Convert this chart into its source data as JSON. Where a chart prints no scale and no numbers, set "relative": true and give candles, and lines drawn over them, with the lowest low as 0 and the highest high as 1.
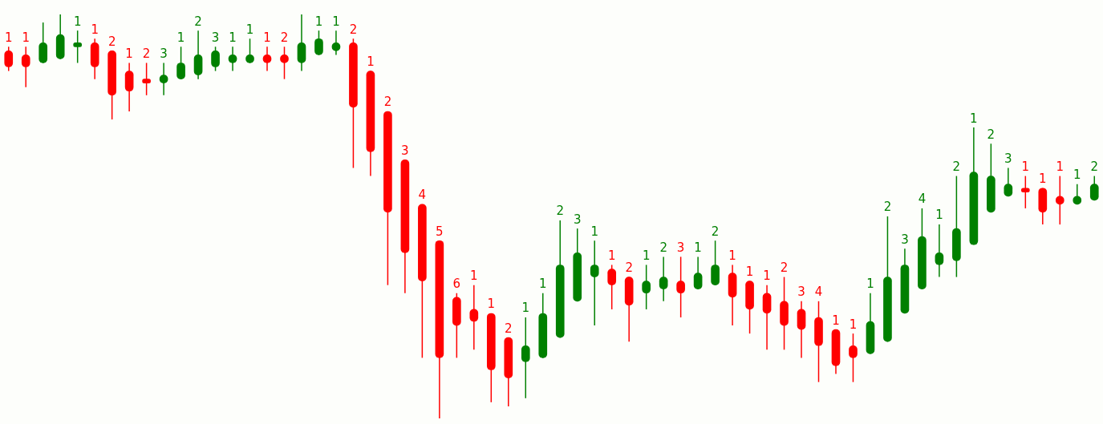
{
  "chart_data": {
    "type": "candlestick",
    "relative": true,
    "categories": [
      null,
      null,
      null,
      null,
      null,
      null,
      null,
      null,
      null,
      null,
      null,
      null,
      null,
      null,
      null,
      null,
      null,
      null,
      null,
      null,
      null,
      null,
      null,
      null,
      null,
      null,
      null,
      null,
      null,
      null,
      null,
      null,
      null,
      null,
      null,
      null,
      null,
      null,
      null,
      null,
      null,
      null,
      null,
      null,
      null,
      null,
      null,
      null,
      null,
      null,
      null,
      null,
      null,
      null,
      null,
      null,
      null,
      null,
      null,
      null,
      null,
      null,
      null,
      null
    ],
    "ohlc": [
      [
        0.91,
        0.92,
        0.86,
        0.87
      ],
      [
        0.9,
        0.92,
        0.82,
        0.87
      ],
      [
        0.88,
        0.98,
        0.88,
        0.93
      ],
      [
        0.89,
        1.0,
        0.89,
        0.95
      ],
      [
        0.92,
        0.96,
        0.88,
        0.93
      ],
      [
        0.93,
        0.94,
        0.84,
        0.87
      ],
      [
        0.91,
        0.91,
        0.74,
        0.8
      ],
      [
        0.86,
        0.88,
        0.76,
        0.81
      ],
      [
        0.84,
        0.88,
        0.8,
        0.83
      ],
      [
        0.83,
        0.88,
        0.8,
        0.85
      ],
      [
        0.84,
        0.92,
        0.84,
        0.88
      ],
      [
        0.85,
        0.96,
        0.84,
        0.9
      ],
      [
        0.87,
        0.92,
        0.86,
        0.91
      ],
      [
        0.88,
        0.92,
        0.86,
        0.9
      ],
      [
        0.88,
        0.94,
        0.88,
        0.9
      ],
      [
        0.9,
        0.92,
        0.86,
        0.88
      ],
      [
        0.9,
        0.92,
        0.84,
        0.88
      ],
      [
        0.88,
        1.0,
        0.86,
        0.93
      ],
      [
        0.9,
        0.96,
        0.9,
        0.94
      ],
      [
        0.91,
        0.96,
        0.9,
        0.93
      ],
      [
        0.93,
        0.94,
        0.62,
        0.77
      ],
      [
        0.86,
        0.86,
        0.6,
        0.66
      ],
      [
        0.76,
        0.76,
        0.33,
        0.51
      ],
      [
        0.64,
        0.64,
        0.31,
        0.41
      ],
      [
        0.53,
        0.53,
        0.15,
        0.34
      ],
      [
        0.44,
        0.44,
        0,
        0.15
      ],
      [
        0.3,
        0.31,
        0.15,
        0.23
      ],
      [
        0.27,
        0.33,
        0.17,
        0.24
      ],
      [
        0.26,
        0.26,
        0.04,
        0.12
      ],
      [
        0.2,
        0.2,
        0.03,
        0.1
      ],
      [
        0.14,
        0.25,
        0.05,
        0.18
      ],
      [
        0.15,
        0.31,
        0.15,
        0.26
      ],
      [
        0.2,
        0.49,
        0.2,
        0.38
      ],
      [
        0.29,
        0.47,
        0.29,
        0.41
      ],
      [
        0.35,
        0.44,
        0.23,
        0.38
      ],
      [
        0.37,
        0.38,
        0.27,
        0.33
      ],
      [
        0.35,
        0.35,
        0.19,
        0.28
      ],
      [
        0.31,
        0.38,
        0.27,
        0.34
      ],
      [
        0.32,
        0.4,
        0.29,
        0.35
      ],
      [
        0.34,
        0.4,
        0.25,
        0.31
      ],
      [
        0.32,
        0.4,
        0.32,
        0.36
      ],
      [
        0.33,
        0.44,
        0.33,
        0.38
      ],
      [
        0.36,
        0.38,
        0.23,
        0.3
      ],
      [
        0.34,
        0.34,
        0.21,
        0.27
      ],
      [
        0.31,
        0.33,
        0.17,
        0.26
      ],
      [
        0.29,
        0.35,
        0.17,
        0.23
      ],
      [
        0.27,
        0.29,
        0.15,
        0.22
      ],
      [
        0.25,
        0.29,
        0.09,
        0.18
      ],
      [
        0.22,
        0.22,
        0.11,
        0.13
      ],
      [
        0.18,
        0.21,
        0.09,
        0.15
      ],
      [
        0.16,
        0.31,
        0.16,
        0.24
      ],
      [
        0.19,
        0.5,
        0.19,
        0.35
      ],
      [
        0.26,
        0.42,
        0.26,
        0.38
      ],
      [
        0.32,
        0.52,
        0.32,
        0.45
      ],
      [
        0.38,
        0.48,
        0.35,
        0.41
      ],
      [
        0.39,
        0.6,
        0.35,
        0.47
      ],
      [
        0.43,
        0.72,
        0.43,
        0.61
      ],
      [
        0.51,
        0.68,
        0.51,
        0.6
      ],
      [
        0.55,
        0.62,
        0.55,
        0.58
      ],
      [
        0.57,
        0.6,
        0.52,
        0.56
      ],
      [
        0.57,
        0.57,
        0.48,
        0.51
      ],
      [
        0.55,
        0.6,
        0.48,
        0.53
      ],
      [
        0.53,
        0.58,
        0.53,
        0.55
      ],
      [
        0.54,
        0.6,
        0.54,
        0.58
      ]
    ],
    "colors": [
      "#ff0000",
      "#ff0000",
      "#008000",
      "#008000",
      "#008000",
      "#ff0000",
      "#ff0000",
      "#ff0000",
      "#ff0000",
      "#008000",
      "#008000",
      "#008000",
      "#008000",
      "#008000",
      "#008000",
      "#ff0000",
      "#ff0000",
      "#008000",
      "#008000",
      "#008000",
      "#ff0000",
      "#ff0000",
      "#ff0000",
      "#ff0000",
      "#ff0000",
      "#ff0000",
      "#ff0000",
      "#ff0000",
      "#ff0000",
      "#ff0000",
      "#008000",
      "#008000",
      "#008000",
      "#008000",
      "#008000",
      "#ff0000",
      "#ff0000",
      "#008000",
      "#008000",
      "#ff0000",
      "#008000",
      "#008000",
      "#ff0000",
      "#ff0000",
      "#ff0000",
      "#ff0000",
      "#ff0000",
      "#ff0000",
      "#ff0000",
      "#ff0000",
      "#008000",
      "#008000",
      "#008000",
      "#008000",
      "#008000",
      "#008000",
      "#008000",
      "#008000",
      "#008000",
      "#ff0000",
      "#ff0000",
      "#ff0000",
      "#008000",
      "#008000"
    ],
    "value_labels": [
      "1",
      "1",
      null,
      null,
      "1",
      "1",
      "2",
      "1",
      "2",
      "3",
      "1",
      "2",
      "3",
      "1",
      "1",
      "1",
      "2",
      null,
      "1",
      "1",
      "2",
      "1",
      "2",
      "3",
      "4",
      "5",
      "6",
      "1",
      "1",
      "2",
      "1",
      "1",
      "2",
      "3",
      "1",
      "1",
      "2",
      "1",
      "2",
      "3",
      "1",
      "2",
      "1",
      "1",
      "1",
      "2",
      "3",
      "4",
      "1",
      "1",
      "1",
      "2",
      "3",
      "4",
      "1",
      "2",
      "1",
      "2",
      "3",
      "1",
      "1",
      "1",
      "1",
      "2"
    ]
  }
}
